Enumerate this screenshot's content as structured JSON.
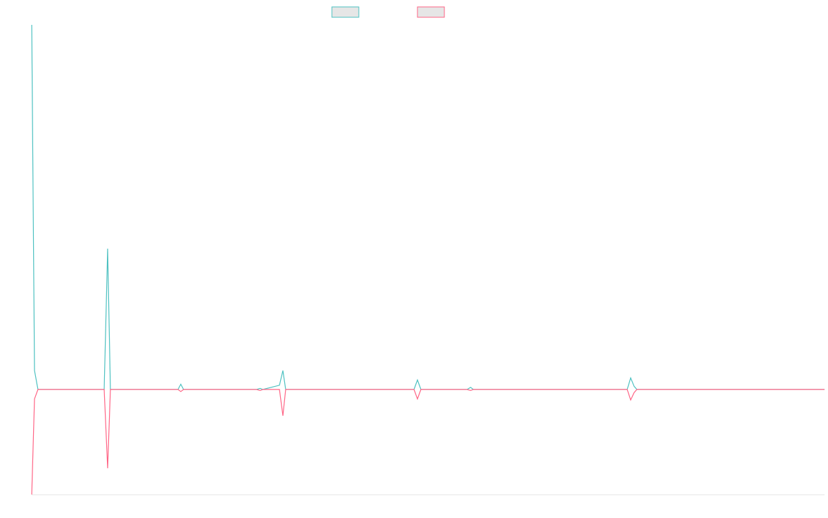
{
  "chart_data": {
    "type": "line",
    "x": [
      0,
      4,
      9,
      105,
      110,
      114,
      212,
      216,
      220,
      326,
      331,
      335,
      359,
      364,
      368,
      554,
      559,
      564,
      631,
      636,
      640,
      863,
      868,
      873,
      877,
      1149
    ],
    "series": [
      {
        "color": "#4bc0c0",
        "values": [
          3.47,
          0.18,
          0,
          0,
          1.34,
          0,
          0,
          0.05,
          0,
          0,
          0.01,
          0,
          0.04,
          0.18,
          0,
          0,
          0.09,
          0,
          0,
          0.02,
          0,
          0,
          0.11,
          0.03,
          0,
          0
        ]
      },
      {
        "color": "#ff6384",
        "values": [
          -1,
          -0.09,
          0,
          0,
          -0.75,
          0,
          0,
          -0.02,
          0,
          0,
          -0.01,
          0,
          0,
          -0.25,
          0,
          0,
          -0.09,
          0,
          0,
          -0.01,
          0,
          0,
          -0.1,
          -0.03,
          0,
          0
        ]
      }
    ],
    "xlim": [
      0,
      1149
    ],
    "ylim": [
      -1,
      3.47
    ],
    "grid": false
  }
}
